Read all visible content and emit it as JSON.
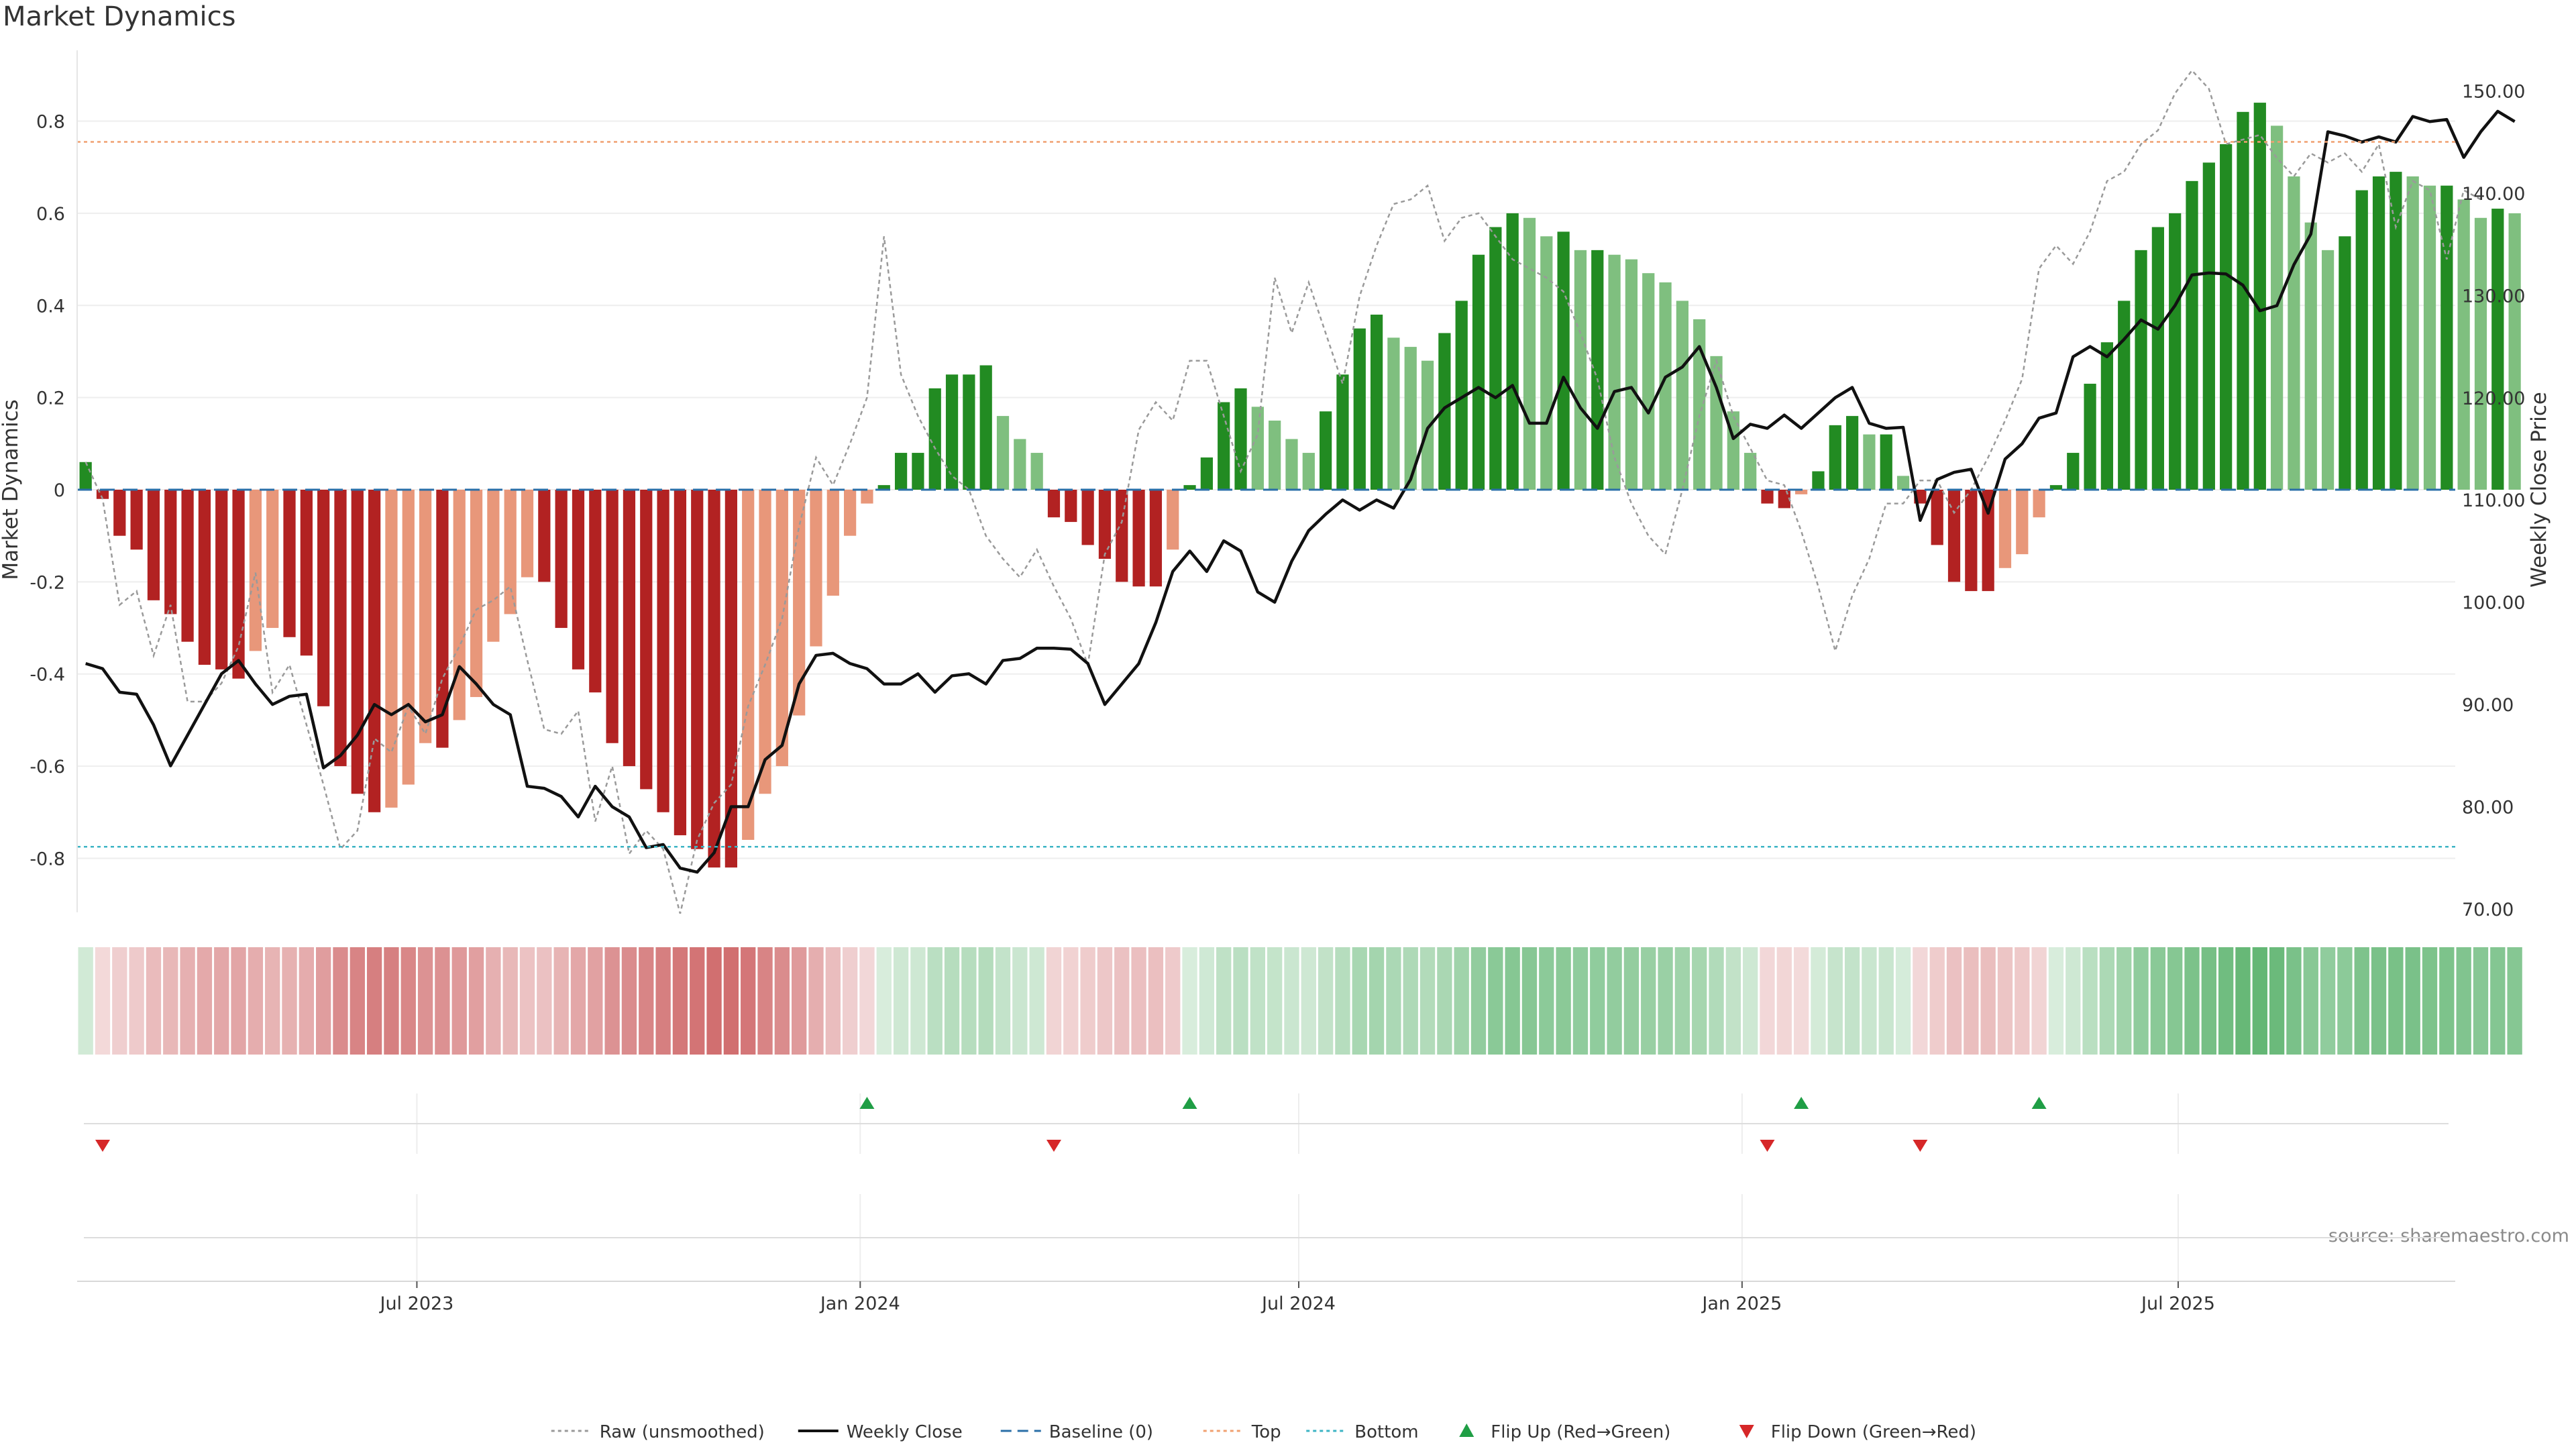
{
  "chart_data": {
    "type": "bar",
    "title": "Market Dynamics",
    "ylabel": "Market Dynamics",
    "y2label": "Weekly Close Price",
    "source": "source: sharemaestro.com",
    "ylim": [
      -0.91,
      0.91
    ],
    "y2lim": [
      70,
      152
    ],
    "yticks": [
      "0.8",
      "0.6",
      "0.4",
      "0.2",
      "0",
      "-0.2",
      "-0.4",
      "-0.6",
      "-0.8"
    ],
    "y2ticks": [
      "150.00",
      "140.00",
      "130.00",
      "120.00",
      "110.00",
      "100.00",
      "90.00",
      "80.00",
      "70.00"
    ],
    "xticks": [
      "Jul 2023",
      "Jan 2024",
      "Jul 2024",
      "Jan 2025",
      "Jul 2025"
    ],
    "x_start": "2023-02-10",
    "x_end": "2025-10-24",
    "xtick_dates": [
      "2023-07-01",
      "2024-01-01",
      "2024-07-01",
      "2025-01-01",
      "2025-07-01"
    ],
    "top_level": 0.755,
    "bottom_level": -0.775,
    "baseline": 0,
    "weeks": 140,
    "series": [
      {
        "name": "Raw (unsmoothed)",
        "values": [
          0.06,
          -0.02,
          -0.25,
          -0.22,
          -0.36,
          -0.25,
          -0.46,
          -0.46,
          -0.42,
          -0.34,
          -0.18,
          -0.44,
          -0.38,
          -0.51,
          -0.64,
          -0.78,
          -0.74,
          -0.54,
          -0.57,
          -0.47,
          -0.53,
          -0.41,
          -0.34,
          -0.26,
          -0.24,
          -0.21,
          -0.37,
          -0.52,
          -0.53,
          -0.48,
          -0.72,
          -0.6,
          -0.79,
          -0.74,
          -0.78,
          -0.92,
          -0.76,
          -0.68,
          -0.64,
          -0.47,
          -0.38,
          -0.28,
          -0.08,
          0.07,
          0.01,
          0.1,
          0.2,
          0.55,
          0.25,
          0.16,
          0.09,
          0.03,
          0.0,
          -0.1,
          -0.15,
          -0.19,
          -0.13,
          -0.21,
          -0.28,
          -0.38,
          -0.14,
          -0.07,
          0.13,
          0.19,
          0.15,
          0.28,
          0.28,
          0.16,
          0.04,
          0.12,
          0.46,
          0.34,
          0.45,
          0.34,
          0.23,
          0.42,
          0.53,
          0.62,
          0.63,
          0.66,
          0.54,
          0.59,
          0.6,
          0.55,
          0.5,
          0.48,
          0.46,
          0.43,
          0.34,
          0.24,
          0.07,
          -0.03,
          -0.1,
          -0.14,
          0.0,
          0.16,
          0.28,
          0.16,
          0.09,
          0.02,
          0.01,
          -0.09,
          -0.21,
          -0.35,
          -0.23,
          -0.15,
          -0.03,
          -0.03,
          0.02,
          0.02,
          -0.05,
          0.0,
          0.07,
          0.15,
          0.24,
          0.48,
          0.53,
          0.49,
          0.56,
          0.67,
          0.69,
          0.75,
          0.78,
          0.86,
          0.91,
          0.87,
          0.75,
          0.76,
          0.77,
          0.72,
          0.68,
          0.73,
          0.71,
          0.73,
          0.69,
          0.75,
          0.57,
          0.67,
          0.65,
          0.5,
          0.65,
          0.63
        ]
      },
      {
        "name": "Weekly Close",
        "values": [
          94,
          93.5,
          91.2,
          91.0,
          88.0,
          84,
          87,
          90,
          93,
          94.3,
          92,
          90,
          90.8,
          91,
          83.8,
          85,
          87,
          90,
          89,
          90,
          88.3,
          89,
          93.7,
          92,
          90,
          89,
          82,
          81.8,
          81,
          79,
          82,
          80,
          79,
          76,
          76.3,
          74,
          73.6,
          75.5,
          80,
          80,
          84.6,
          86,
          92,
          94.8,
          95,
          94,
          93.5,
          92,
          92,
          93,
          91.2,
          92.8,
          93,
          92,
          94.3,
          94.5,
          95.5,
          95.5,
          95.4,
          94,
          90,
          92,
          94,
          98,
          103,
          105,
          103,
          106,
          105,
          101,
          100,
          104,
          107,
          108.6,
          110,
          109,
          110,
          109.2,
          112,
          117,
          119,
          120,
          121,
          120,
          121.2,
          117.5,
          117.5,
          122,
          119,
          117,
          120.6,
          121,
          118.5,
          122,
          123,
          125,
          121,
          116,
          117.4,
          117,
          118.3,
          117,
          118.5,
          120,
          121,
          117.5,
          117,
          117.1,
          108,
          112,
          112.7,
          113,
          108.7,
          114,
          115.5,
          118,
          118.5,
          124,
          125,
          124,
          125.7,
          127.6,
          126.7,
          129,
          132,
          132.2,
          132.1,
          131,
          128.5,
          129,
          133,
          136,
          146,
          145.6,
          145,
          145.5,
          145,
          147.5,
          147,
          147.2,
          143.5,
          146,
          148,
          147
        ]
      }
    ],
    "bars": [
      0.06,
      -0.02,
      -0.1,
      -0.13,
      -0.24,
      -0.27,
      -0.33,
      -0.38,
      -0.39,
      -0.41,
      -0.35,
      -0.3,
      -0.32,
      -0.36,
      -0.47,
      -0.6,
      -0.66,
      -0.7,
      -0.69,
      -0.64,
      -0.55,
      -0.56,
      -0.5,
      -0.45,
      -0.33,
      -0.27,
      -0.19,
      -0.2,
      -0.3,
      -0.39,
      -0.44,
      -0.55,
      -0.6,
      -0.65,
      -0.7,
      -0.75,
      -0.78,
      -0.82,
      -0.82,
      -0.76,
      -0.66,
      -0.6,
      -0.49,
      -0.34,
      -0.23,
      -0.1,
      -0.03,
      0.01,
      0.08,
      0.08,
      0.22,
      0.25,
      0.25,
      0.27,
      0.16,
      0.11,
      0.08,
      -0.06,
      -0.07,
      -0.12,
      -0.15,
      -0.2,
      -0.21,
      -0.21,
      -0.13,
      0.01,
      0.07,
      0.19,
      0.22,
      0.18,
      0.15,
      0.11,
      0.08,
      0.17,
      0.25,
      0.35,
      0.38,
      0.33,
      0.31,
      0.28,
      0.34,
      0.41,
      0.51,
      0.57,
      0.6,
      0.59,
      0.55,
      0.56,
      0.52,
      0.52,
      0.51,
      0.5,
      0.47,
      0.45,
      0.41,
      0.37,
      0.29,
      0.17,
      0.08,
      -0.03,
      -0.04,
      -0.01,
      0.04,
      0.14,
      0.16,
      0.12,
      0.12,
      0.03,
      -0.03,
      -0.12,
      -0.2,
      -0.22,
      -0.22,
      -0.17,
      -0.14,
      -0.06,
      0.01,
      0.08,
      0.23,
      0.32,
      0.41,
      0.52,
      0.57,
      0.6,
      0.67,
      0.71,
      0.75,
      0.82,
      0.84,
      0.79,
      0.68,
      0.58,
      0.52,
      0.55,
      0.65,
      0.68,
      0.69,
      0.68,
      0.66,
      0.66,
      0.63,
      0.59,
      0.61,
      0.6
    ],
    "flips_up_weeks": [
      46,
      65,
      101,
      115
    ],
    "flips_down_weeks": [
      1,
      57,
      99,
      108
    ],
    "legend": [
      {
        "label": "Raw (unsmoothed)",
        "style": "dotted",
        "color": "#999999"
      },
      {
        "label": "Weekly Close",
        "style": "solid",
        "color": "#111111"
      },
      {
        "label": "Baseline (0)",
        "style": "dashed",
        "color": "#2a6fa8"
      },
      {
        "label": "Top",
        "style": "dotted",
        "color": "#f0a070"
      },
      {
        "label": "Bottom",
        "style": "dotted",
        "color": "#3cb4c4"
      },
      {
        "label": "Flip Up (Red→Green)",
        "style": "tri-up",
        "color": "#1f9e45"
      },
      {
        "label": "Flip Down (Green→Red)",
        "style": "tri-down",
        "color": "#d62728"
      }
    ],
    "colors": {
      "bar_strong_green": "#228b22",
      "bar_light_green": "#7fbf7f",
      "bar_strong_red": "#b22222",
      "bar_light_red": "#e8977a",
      "strip_green": "#2e9e45",
      "strip_red": "#c0393b"
    },
    "legend_placement": "bottom-center",
    "grid": true
  }
}
